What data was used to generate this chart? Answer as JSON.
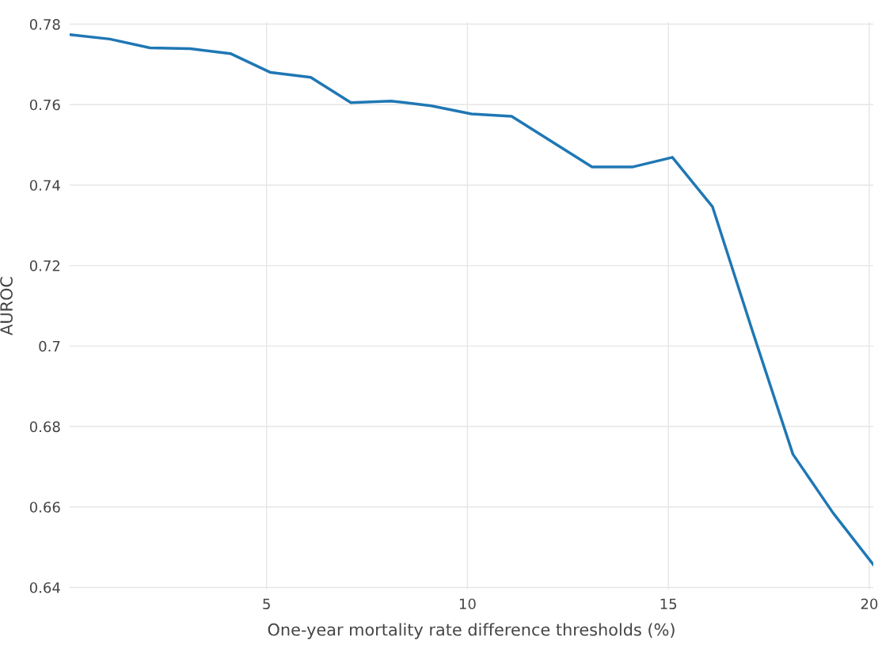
{
  "chart_data": {
    "type": "line",
    "xlabel": "One-year mortality rate difference thresholds (%)",
    "ylabel": "AUROC",
    "x": [
      0.1,
      1.1,
      2.1,
      3.1,
      4.1,
      5.1,
      6.1,
      7.1,
      8.1,
      9.1,
      10.1,
      11.1,
      12.1,
      13.1,
      14.1,
      15.1,
      16.1,
      17.1,
      18.1,
      19.1,
      20.1
    ],
    "series": [
      {
        "color": "#1f77b4",
        "values": [
          0.7774,
          0.7763,
          0.7741,
          0.7739,
          0.7727,
          0.768,
          0.7668,
          0.7605,
          0.7609,
          0.7597,
          0.7577,
          0.7571,
          0.7508,
          0.7445,
          0.7445,
          0.7469,
          0.7346,
          0.7035,
          0.6731,
          0.6585,
          0.6457
        ]
      }
    ],
    "xlim": [
      0.1,
      20.1
    ],
    "ylim": [
      0.6395,
      0.7805
    ],
    "xticks": [
      5,
      10,
      15,
      20
    ],
    "yticks": [
      0.64,
      0.66,
      0.68,
      0.7,
      0.72,
      0.74,
      0.76,
      0.78
    ],
    "grid": true,
    "line_style": "solid",
    "marker": "none"
  }
}
